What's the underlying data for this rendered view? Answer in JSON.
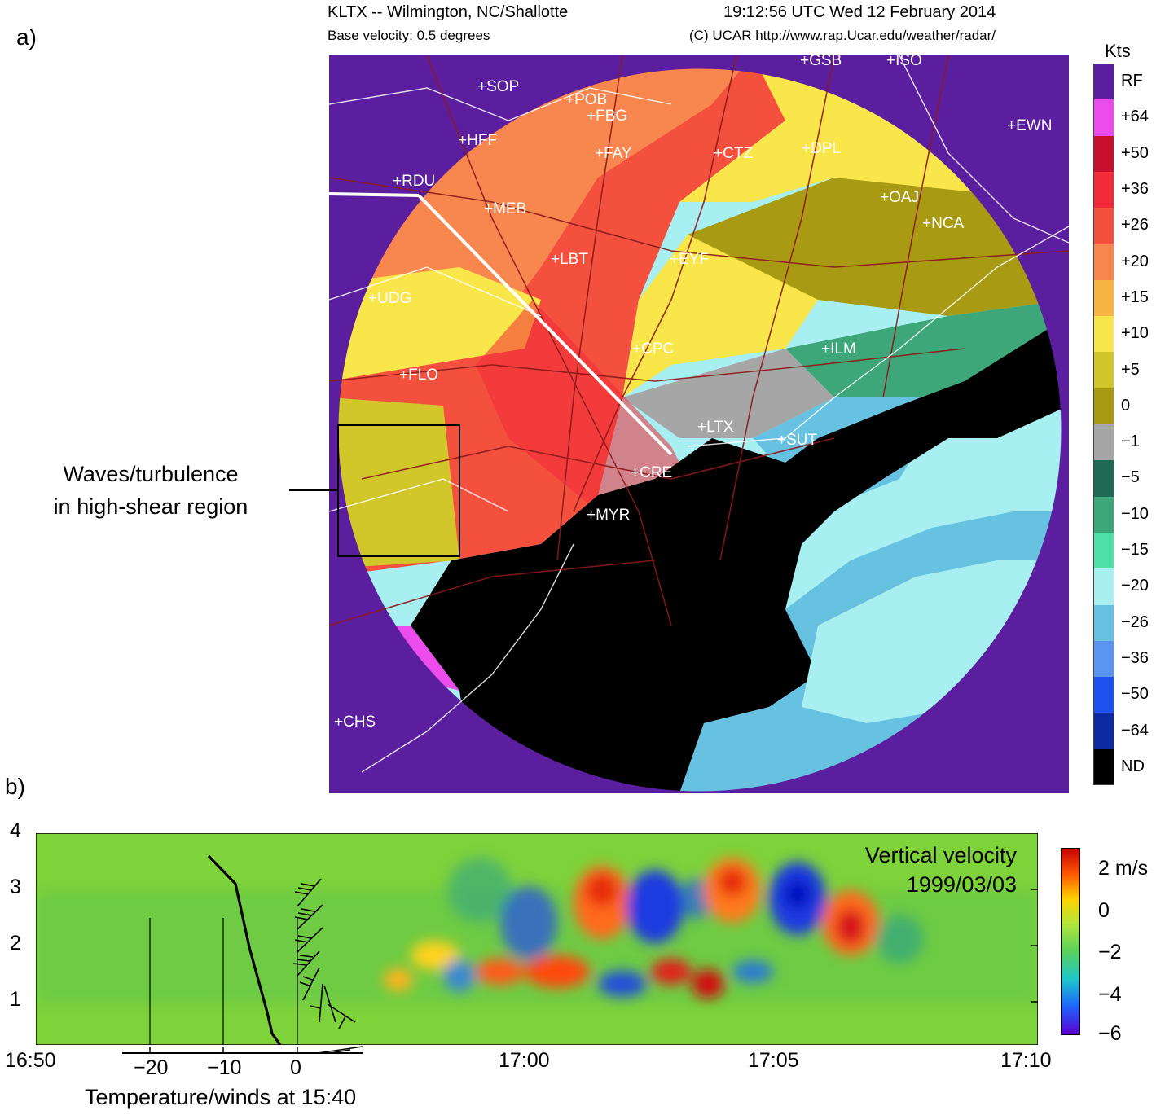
{
  "panel_a": {
    "label": "a)",
    "station_title": "KLTX -- Wilmington, NC/Shallotte",
    "timestamp": "19:12:56 UTC Wed 12 February 2014",
    "product": "Base velocity: 0.5 degrees",
    "credit": "(C) UCAR http://www.rap.Ucar.edu/weather/radar/",
    "annotation_line1": "Waves/turbulence",
    "annotation_line2": "in high-shear region",
    "legend_unit": "Kts",
    "legend": [
      {
        "label": "RF",
        "color": "#5b1e9e"
      },
      {
        "label": "+64",
        "color": "#ec4cec"
      },
      {
        "label": "+50",
        "color": "#c8102e"
      },
      {
        "label": "+36",
        "color": "#f02a36"
      },
      {
        "label": "+26",
        "color": "#f4503e"
      },
      {
        "label": "+20",
        "color": "#f7874e"
      },
      {
        "label": "+15",
        "color": "#f8b443"
      },
      {
        "label": "+10",
        "color": "#f8e64b"
      },
      {
        "label": "+5",
        "color": "#d1c72a"
      },
      {
        "label": "0",
        "color": "#a89a12"
      },
      {
        "label": "−1",
        "color": "#a6a6a6"
      },
      {
        "label": "−5",
        "color": "#1e6a55"
      },
      {
        "label": "−10",
        "color": "#3da77a"
      },
      {
        "label": "−15",
        "color": "#4fe0a8"
      },
      {
        "label": "−20",
        "color": "#a8eff2"
      },
      {
        "label": "−26",
        "color": "#67c1e0"
      },
      {
        "label": "−36",
        "color": "#5a95f2"
      },
      {
        "label": "−50",
        "color": "#1d52f0"
      },
      {
        "label": "−64",
        "color": "#0c2aa2"
      },
      {
        "label": "ND",
        "color": "#000000"
      }
    ],
    "map_labels": [
      "GSB",
      "ISO",
      "SOP",
      "POB",
      "FBG",
      "EWN",
      "HFF",
      "FAY",
      "CTZ",
      "DPL",
      "RDU",
      "MEB",
      "OAJ",
      "NCA",
      "LBT",
      "EYF",
      "UDG",
      "CPC",
      "ILM",
      "FLO",
      "LTX",
      "SUT",
      "CRE",
      "MYR",
      "CHS"
    ]
  },
  "panel_b": {
    "label": "b)",
    "title_line1": "Vertical velocity",
    "title_line2": "1999/03/03",
    "colorbar_labels": [
      "2 m/s",
      "0",
      "−2",
      "−4",
      "−6"
    ],
    "y_ticks": [
      "4",
      "3",
      "2",
      "1"
    ],
    "x_ticks": [
      "16:50",
      "17:00",
      "17:05",
      "17:10"
    ],
    "temp_ticks": [
      "−20",
      "−10",
      "0"
    ],
    "temp_xlabel": "Temperature/winds at 15:40"
  }
}
